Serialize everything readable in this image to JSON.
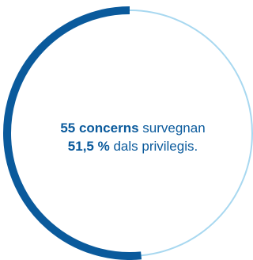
{
  "chart_data": {
    "type": "pie",
    "values": [
      51.5,
      48.5
    ],
    "colors": [
      "#0a5a9c",
      "#a8d8f0"
    ],
    "annotation": {
      "line1_bold": "55 concerns",
      "line1_rest": "survegnan",
      "line2_bold": "51,5 %",
      "line2_rest": "dals privilegis."
    }
  }
}
